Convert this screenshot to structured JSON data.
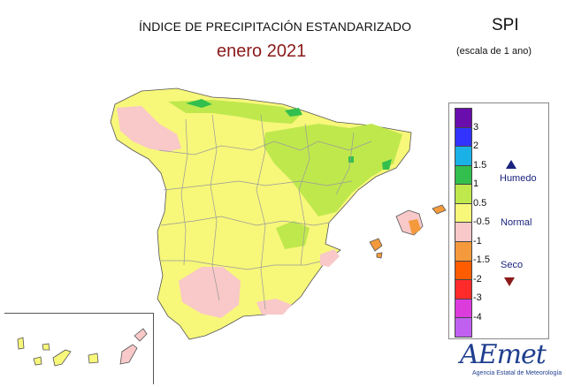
{
  "header": {
    "title": "ÍNDICE DE PRECIPITACIÓN ESTANDARIZADO",
    "subtitle": "enero 2021",
    "index": "SPI",
    "scale_note": "(escala de 1 ano)"
  },
  "legend": {
    "ticks": [
      "3",
      "2",
      "1.5",
      "1",
      "0.5",
      "-0.5",
      "-1",
      "-1.5",
      "-2",
      "-3",
      "-4"
    ],
    "colors": [
      "#6a0dad",
      "#3333ff",
      "#1ab2e6",
      "#33bf4d",
      "#bfe84d",
      "#f7f77a",
      "#f9c8c8",
      "#f49a3c",
      "#ff5c00",
      "#ff2a2a",
      "#dc3cdc",
      "#c060f0"
    ],
    "categories": {
      "wet": "Humedo",
      "normal": "Normal",
      "dry": "Seco"
    }
  },
  "logo": {
    "name": "AEmet",
    "subtitle": "Agencia Estatal de Meteorología"
  },
  "map": {
    "colors": {
      "normal": "#f7f77a",
      "wet": "#bfe84d",
      "very_wet": "#33bf4d",
      "dry": "#f9c8c8",
      "very_dry": "#f49a3c",
      "border": "#9a9a9a"
    }
  }
}
